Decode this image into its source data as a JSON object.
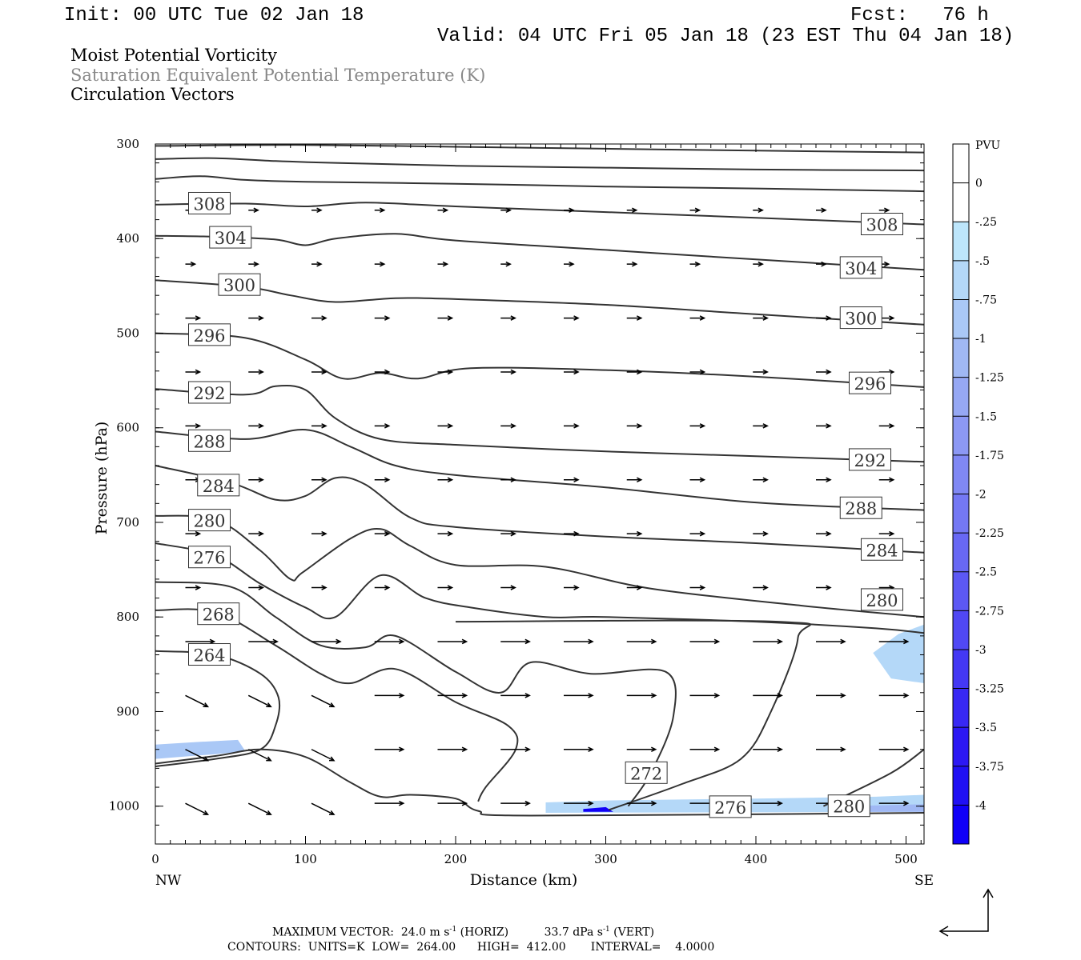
{
  "header": {
    "init": "Init: 00 UTC Tue 02 Jan 18",
    "fcst": "Fcst:   76 h",
    "valid": "Valid: 04 UTC Fri 05 Jan 18 (23 EST Thu 04 Jan 18)"
  },
  "titles": [
    {
      "text": "Moist Potential Vorticity",
      "color": "#000000"
    },
    {
      "text": "Saturation Equivalent Potential Temperature (K)",
      "color": "#888888"
    },
    {
      "text": "Circulation Vectors",
      "color": "#000000"
    }
  ],
  "footer": {
    "line1a": "MAXIMUM VECTOR:  24.0 m s",
    "line1a_sup": "-1",
    "line1b": " (HORIZ)",
    "line1c": "33.7 dPa s",
    "line1c_sup": "-1",
    "line1d": " (VERT)",
    "line2": "CONTOURS:  UNITS=K  LOW=  264.00      HIGH=  412.00       INTERVAL=    4.0000"
  },
  "chart_data": {
    "type": "cross-section",
    "xlabel": "Distance (km)",
    "ylabel": "Pressure (hPa)",
    "xlim": [
      0,
      512
    ],
    "ylim": [
      1040,
      300
    ],
    "x_ticks": [
      0,
      100,
      200,
      300,
      400,
      500
    ],
    "y_ticks": [
      300,
      400,
      500,
      600,
      700,
      800,
      900,
      1000
    ],
    "x_end_labels": {
      "left": "NW",
      "right": "SE"
    },
    "colorbar": {
      "unit": "PVU",
      "labels": [
        "0",
        "-.25",
        "-.5",
        "-.75",
        "-1",
        "-1.25",
        "-1.5",
        "-1.75",
        "-2",
        "-2.25",
        "-2.5",
        "-2.75",
        "-3",
        "-3.25",
        "-3.5",
        "-3.75",
        "-4"
      ],
      "colors": [
        "#ffffff",
        "#ffffff",
        "#bde6fb",
        "#b4d8f8",
        "#aac8f6",
        "#a0b8f4",
        "#96a8f4",
        "#8c98f4",
        "#8088f4",
        "#7478f4",
        "#6868f4",
        "#5c58f4",
        "#5048f4",
        "#4438f4",
        "#3828f4",
        "#2c18f4",
        "#2010f4",
        "#1000f8"
      ]
    },
    "contours": [
      {
        "label": "",
        "points": [
          [
            0,
            302
          ],
          [
            100,
            301
          ],
          [
            200,
            303
          ],
          [
            300,
            305
          ],
          [
            400,
            307
          ],
          [
            512,
            309
          ]
        ]
      },
      {
        "label": "",
        "points": [
          [
            0,
            316
          ],
          [
            40,
            315
          ],
          [
            80,
            318
          ],
          [
            120,
            320
          ],
          [
            200,
            323
          ],
          [
            300,
            325
          ],
          [
            400,
            327
          ],
          [
            512,
            328
          ]
        ]
      },
      {
        "label": "",
        "points": [
          [
            0,
            337
          ],
          [
            30,
            334
          ],
          [
            60,
            338
          ],
          [
            100,
            340
          ],
          [
            200,
            342
          ],
          [
            300,
            345
          ],
          [
            400,
            347
          ],
          [
            512,
            350
          ]
        ]
      },
      {
        "label": "308",
        "points": [
          [
            0,
            364
          ],
          [
            60,
            363
          ],
          [
            100,
            366
          ],
          [
            140,
            362
          ],
          [
            200,
            366
          ],
          [
            300,
            372
          ],
          [
            400,
            378
          ],
          [
            512,
            385
          ]
        ],
        "labels_at": [
          [
            36,
            363
          ],
          [
            484,
            385
          ]
        ]
      },
      {
        "label": "304",
        "points": [
          [
            0,
            397
          ],
          [
            40,
            398
          ],
          [
            80,
            401
          ],
          [
            100,
            407
          ],
          [
            120,
            400
          ],
          [
            160,
            395
          ],
          [
            200,
            402
          ],
          [
            300,
            412
          ],
          [
            400,
            422
          ],
          [
            512,
            433
          ]
        ],
        "labels_at": [
          [
            50,
            399
          ],
          [
            470,
            431
          ]
        ]
      },
      {
        "label": "300",
        "points": [
          [
            0,
            444
          ],
          [
            60,
            451
          ],
          [
            90,
            460
          ],
          [
            120,
            467
          ],
          [
            160,
            463
          ],
          [
            200,
            464
          ],
          [
            300,
            470
          ],
          [
            400,
            480
          ],
          [
            512,
            491
          ]
        ],
        "labels_at": [
          [
            56,
            449
          ],
          [
            470,
            484
          ]
        ]
      },
      {
        "label": "296",
        "points": [
          [
            0,
            500
          ],
          [
            60,
            505
          ],
          [
            100,
            528
          ],
          [
            125,
            548
          ],
          [
            150,
            542
          ],
          [
            175,
            548
          ],
          [
            210,
            537
          ],
          [
            300,
            539
          ],
          [
            400,
            546
          ],
          [
            512,
            557
          ]
        ],
        "labels_at": [
          [
            36,
            502
          ],
          [
            476,
            553
          ]
        ]
      },
      {
        "label": "292",
        "points": [
          [
            0,
            559
          ],
          [
            60,
            565
          ],
          [
            80,
            556
          ],
          [
            100,
            560
          ],
          [
            120,
            590
          ],
          [
            150,
            612
          ],
          [
            200,
            618
          ],
          [
            300,
            625
          ],
          [
            400,
            630
          ],
          [
            512,
            636
          ]
        ],
        "labels_at": [
          [
            36,
            563
          ],
          [
            476,
            634
          ]
        ]
      },
      {
        "label": "288",
        "points": [
          [
            0,
            604
          ],
          [
            60,
            612
          ],
          [
            100,
            602
          ],
          [
            130,
            620
          ],
          [
            160,
            640
          ],
          [
            200,
            650
          ],
          [
            300,
            663
          ],
          [
            400,
            679
          ],
          [
            512,
            687
          ]
        ],
        "labels_at": [
          [
            36,
            614
          ],
          [
            470,
            685
          ]
        ]
      },
      {
        "label": "284",
        "points": [
          [
            0,
            640
          ],
          [
            50,
            658
          ],
          [
            80,
            676
          ],
          [
            100,
            672
          ],
          [
            120,
            653
          ],
          [
            140,
            660
          ],
          [
            170,
            695
          ],
          [
            200,
            705
          ],
          [
            300,
            715
          ],
          [
            400,
            722
          ],
          [
            512,
            732
          ]
        ],
        "labels_at": [
          [
            42,
            661
          ],
          [
            484,
            729
          ]
        ]
      },
      {
        "label": "280",
        "points": [
          [
            0,
            693
          ],
          [
            40,
            697
          ],
          [
            70,
            730
          ],
          [
            90,
            760
          ],
          [
            98,
            753
          ],
          [
            130,
            717
          ],
          [
            150,
            707
          ],
          [
            170,
            725
          ],
          [
            200,
            745
          ],
          [
            260,
            747
          ],
          [
            330,
            770
          ],
          [
            430,
            788
          ],
          [
            512,
            800
          ]
        ],
        "labels_at": [
          [
            36,
            698
          ],
          [
            484,
            782
          ]
        ]
      },
      {
        "label": "276",
        "points": [
          [
            0,
            722
          ],
          [
            40,
            735
          ],
          [
            70,
            765
          ],
          [
            100,
            790
          ],
          [
            120,
            800
          ],
          [
            150,
            756
          ],
          [
            180,
            780
          ],
          [
            210,
            790
          ],
          [
            260,
            800
          ],
          [
            300,
            800
          ],
          [
            400,
            805
          ],
          [
            480,
            812
          ],
          [
            512,
            817
          ]
        ],
        "labels_at": [
          [
            36,
            737
          ]
        ]
      },
      {
        "label": "272",
        "points": [
          [
            0,
            763
          ],
          [
            50,
            768
          ],
          [
            80,
            800
          ],
          [
            110,
            830
          ],
          [
            140,
            832
          ],
          [
            160,
            820
          ],
          [
            200,
            858
          ],
          [
            230,
            880
          ],
          [
            250,
            848
          ],
          [
            290,
            860
          ],
          [
            340,
            858
          ],
          [
            345,
            905
          ],
          [
            330,
            965
          ],
          [
            315,
            1000
          ]
        ],
        "labels_at": [
          [
            327,
            965
          ]
        ]
      },
      {
        "label": "268",
        "points": [
          [
            0,
            793
          ],
          [
            40,
            795
          ],
          [
            80,
            830
          ],
          [
            110,
            860
          ],
          [
            130,
            870
          ],
          [
            160,
            855
          ],
          [
            200,
            890
          ],
          [
            235,
            915
          ],
          [
            240,
            940
          ],
          [
            220,
            980
          ],
          [
            215,
            995
          ]
        ],
        "labels_at": [
          [
            42,
            797
          ]
        ]
      },
      {
        "label": "264",
        "points": [
          [
            0,
            836
          ],
          [
            40,
            840
          ],
          [
            70,
            860
          ],
          [
            82,
            885
          ],
          [
            80,
            915
          ],
          [
            70,
            940
          ],
          [
            40,
            950
          ],
          [
            0,
            958
          ]
        ],
        "labels_at": [
          [
            36,
            840
          ]
        ]
      },
      {
        "label": "276",
        "points": [
          [
            302,
            1004
          ],
          [
            350,
            977
          ],
          [
            390,
            950
          ],
          [
            410,
            900
          ],
          [
            428,
            822
          ],
          [
            415,
            805
          ],
          [
            200,
            805
          ]
        ],
        "labels_at": [
          [
            383,
            1001
          ]
        ]
      },
      {
        "label": "280",
        "points": [
          [
            445,
            1000
          ],
          [
            490,
            965
          ],
          [
            512,
            940
          ]
        ],
        "labels_at": [
          [
            462,
            1000
          ]
        ]
      },
      {
        "label": "",
        "points": [
          [
            0,
            955
          ],
          [
            40,
            947
          ],
          [
            70,
            940
          ],
          [
            100,
            948
          ],
          [
            130,
            975
          ],
          [
            150,
            990
          ],
          [
            170,
            988
          ],
          [
            200,
            992
          ],
          [
            215,
            1005
          ],
          [
            250,
            1010
          ],
          [
            512,
            1007
          ]
        ]
      }
    ],
    "vectors": [
      {
        "x": 55,
        "p": 1000,
        "u": 0,
        "v": 0
      }
    ],
    "shaded_regions": [
      {
        "pvu": -0.75,
        "points": [
          [
            0,
            935
          ],
          [
            30,
            932
          ],
          [
            55,
            930
          ],
          [
            60,
            942
          ],
          [
            40,
            945
          ],
          [
            0,
            950
          ]
        ]
      },
      {
        "pvu": -0.5,
        "points": [
          [
            260,
            996
          ],
          [
            300,
            994
          ],
          [
            400,
            992
          ],
          [
            480,
            990
          ],
          [
            512,
            988
          ],
          [
            512,
            1006
          ],
          [
            260,
            1007
          ]
        ]
      },
      {
        "pvu": -1.0,
        "points": [
          [
            460,
            1000
          ],
          [
            512,
            998
          ],
          [
            512,
            1006
          ],
          [
            460,
            1006
          ]
        ]
      },
      {
        "pvu": -4.0,
        "points": [
          [
            285,
            1003
          ],
          [
            300,
            1001
          ],
          [
            305,
            1006
          ],
          [
            285,
            1006
          ]
        ]
      },
      {
        "pvu": -0.5,
        "points": [
          [
            478,
            838
          ],
          [
            495,
            818
          ],
          [
            512,
            808
          ],
          [
            512,
            870
          ],
          [
            490,
            865
          ]
        ]
      }
    ]
  }
}
